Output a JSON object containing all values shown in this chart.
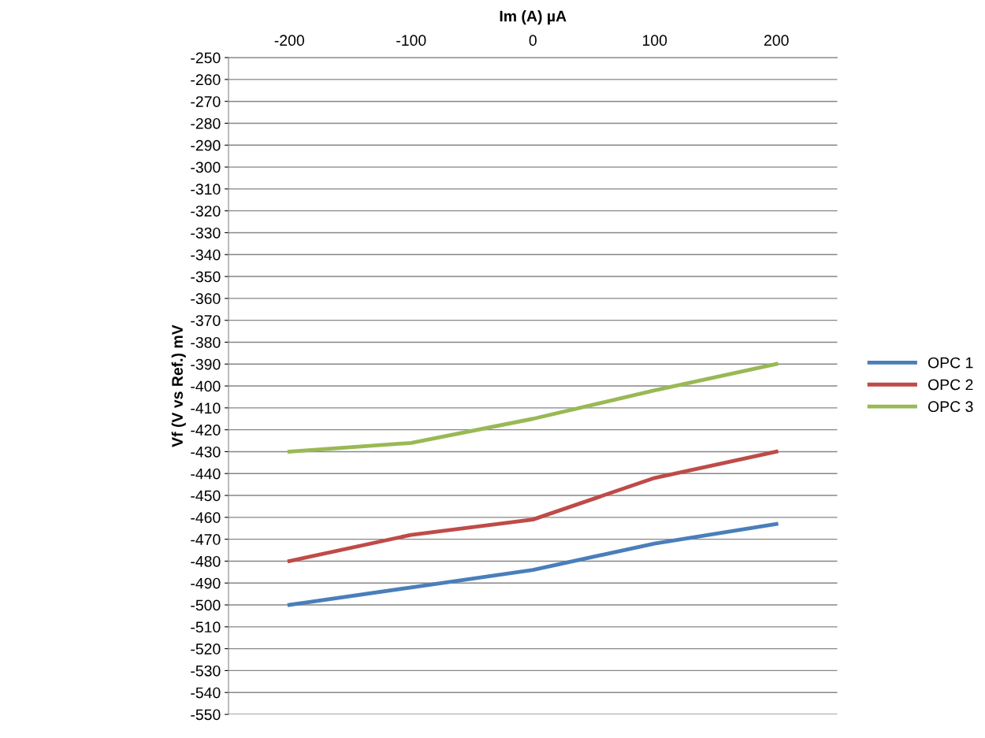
{
  "chart_data": {
    "type": "line",
    "xlabel": "Im (A) µA",
    "ylabel": "Vf (V vs Ref.) mV",
    "categories": [
      "-200",
      "-100",
      "0",
      "100",
      "200"
    ],
    "series": [
      {
        "name": "OPC 1",
        "color": "#4a7ebb",
        "values": [
          -500,
          -492,
          -484,
          -472,
          -463
        ]
      },
      {
        "name": "OPC 2",
        "color": "#be4b48",
        "values": [
          -480,
          -468,
          -461,
          -442,
          -430
        ]
      },
      {
        "name": "OPC 3",
        "color": "#98b954",
        "values": [
          -430,
          -426,
          -415,
          -402,
          -390
        ]
      }
    ],
    "ylim": [
      -550,
      -250
    ],
    "yticks": [
      -550,
      -540,
      -530,
      -520,
      -510,
      -500,
      -490,
      -480,
      -470,
      -460,
      -450,
      -440,
      -430,
      -420,
      -410,
      -400,
      -390,
      -380,
      -370,
      -360,
      -350,
      -340,
      -330,
      -320,
      -310,
      -300,
      -290,
      -280,
      -270,
      -260,
      -250
    ],
    "grid": "y",
    "legend": "right",
    "marker": "none",
    "line_style": "solid"
  }
}
